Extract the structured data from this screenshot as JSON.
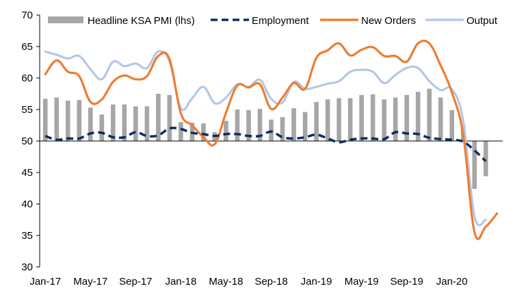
{
  "chart_data": {
    "type": "bar+line",
    "title": "",
    "xlabel": "",
    "ylabel": "",
    "ylim": [
      30,
      70
    ],
    "yticks": [
      30,
      35,
      40,
      45,
      50,
      55,
      60,
      65,
      70
    ],
    "baseline": 50,
    "grid": false,
    "legend_position": "top",
    "x": [
      "Jan-17",
      "Feb-17",
      "Mar-17",
      "Apr-17",
      "May-17",
      "Jun-17",
      "Jul-17",
      "Aug-17",
      "Sep-17",
      "Oct-17",
      "Nov-17",
      "Dec-17",
      "Jan-18",
      "Feb-18",
      "Mar-18",
      "Apr-18",
      "May-18",
      "Jun-18",
      "Jul-18",
      "Aug-18",
      "Sep-18",
      "Oct-18",
      "Nov-18",
      "Dec-18",
      "Jan-19",
      "Feb-19",
      "Mar-19",
      "Apr-19",
      "May-19",
      "Jun-19",
      "Jul-19",
      "Aug-19",
      "Sep-19",
      "Oct-19",
      "Nov-19",
      "Dec-19",
      "Jan-20",
      "Feb-20",
      "Mar-20",
      "Apr-20",
      "May-20"
    ],
    "xtick_labels": [
      "Jan-17",
      "May-17",
      "Sep-17",
      "Jan-18",
      "May-18",
      "Sep-18",
      "Jan-19",
      "May-19",
      "Sep-19",
      "Jan-20"
    ],
    "series": [
      {
        "name": "Headline KSA PMI (lhs)",
        "type": "bar",
        "color": "#a6a6a6",
        "values": [
          56.7,
          56.9,
          56.4,
          56.5,
          55.3,
          54.2,
          55.8,
          55.8,
          55.5,
          55.5,
          57.5,
          57.3,
          53.0,
          52.9,
          52.8,
          51.4,
          53.2,
          55.0,
          54.9,
          55.1,
          53.4,
          53.8,
          55.2,
          54.6,
          56.2,
          56.6,
          56.8,
          56.8,
          57.3,
          57.4,
          56.6,
          56.9,
          57.3,
          57.8,
          58.3,
          56.9,
          54.9,
          52.5,
          42.4,
          44.4,
          null
        ]
      },
      {
        "name": "Employment",
        "type": "line",
        "style": "dashed",
        "color": "#0d2c5f",
        "values": [
          50.8,
          50.2,
          50.4,
          50.4,
          51.2,
          51.3,
          50.6,
          50.6,
          51.4,
          50.8,
          50.9,
          52.0,
          51.9,
          51.3,
          51.1,
          50.8,
          51.1,
          51.1,
          50.8,
          50.8,
          51.5,
          50.6,
          50.4,
          50.6,
          51.0,
          50.4,
          49.8,
          50.2,
          50.4,
          50.4,
          50.3,
          51.4,
          51.2,
          51.1,
          50.5,
          50.3,
          50.2,
          49.9,
          48.5,
          46.8,
          null
        ]
      },
      {
        "name": "New Orders",
        "type": "line",
        "color": "#ed7d31",
        "values": [
          60.6,
          62.8,
          61.0,
          60.3,
          56.2,
          56.6,
          59.4,
          60.4,
          59.8,
          60.3,
          63.5,
          63.0,
          54.4,
          52.5,
          50.6,
          49.5,
          54.5,
          58.8,
          58.5,
          59.0,
          55.1,
          56.9,
          59.2,
          58.3,
          63.2,
          64.4,
          65.5,
          63.6,
          64.5,
          64.9,
          63.5,
          63.5,
          62.6,
          65.5,
          65.5,
          62.0,
          57.7,
          51.0,
          35.5,
          36.4,
          38.5
        ]
      },
      {
        "name": "Output",
        "type": "line",
        "color": "#b4c7e7",
        "values": [
          64.2,
          63.7,
          63.1,
          63.5,
          61.4,
          59.8,
          62.6,
          61.9,
          62.3,
          61.6,
          64.2,
          62.6,
          55.2,
          56.8,
          58.6,
          56.0,
          56.9,
          59.0,
          58.6,
          59.7,
          56.7,
          56.1,
          59.4,
          58.3,
          58.6,
          59.1,
          59.5,
          61.0,
          61.3,
          61.0,
          59.2,
          60.5,
          61.6,
          61.6,
          59.5,
          58.1,
          58.2,
          53.2,
          38.0,
          37.5,
          null
        ]
      }
    ]
  }
}
